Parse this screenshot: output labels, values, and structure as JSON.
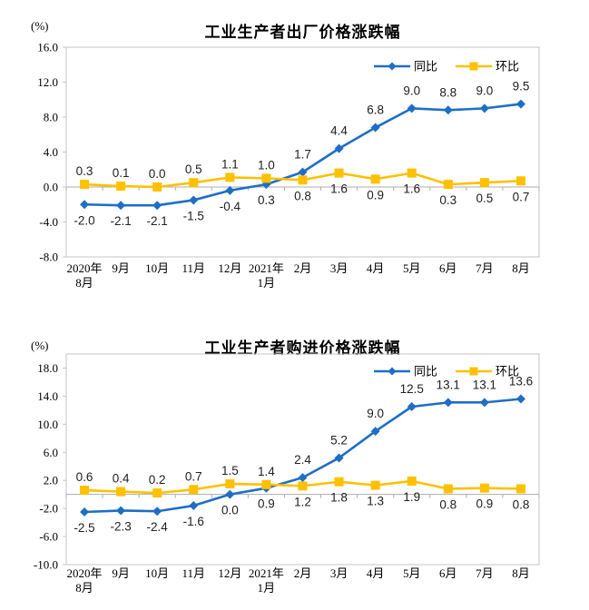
{
  "colors": {
    "yoy_blue": "#1F6EC6",
    "mom_yellow": "#FFC000",
    "plot_border": "#C6C6C6",
    "zero_axis": "#ADADAD",
    "label_text": "#212121",
    "axis_text": "#000000",
    "title_text": "#000000",
    "background": "#FFFFFF"
  },
  "chart_data": [
    {
      "type": "line",
      "title": "工业生产者出厂价格涨跌幅",
      "ylabel": "(%)",
      "xlabel": "",
      "grid": false,
      "legend_position": "inside-top-right",
      "categories": [
        [
          "2020年",
          "8月"
        ],
        [
          "9月"
        ],
        [
          "10月"
        ],
        [
          "11月"
        ],
        [
          "12月"
        ],
        [
          "2021年",
          "1月"
        ],
        [
          "2月"
        ],
        [
          "3月"
        ],
        [
          "4月"
        ],
        [
          "5月"
        ],
        [
          "6月"
        ],
        [
          "7月"
        ],
        [
          "8月"
        ]
      ],
      "series": [
        {
          "name": "同比",
          "key": "yoy",
          "marker": "diamond",
          "color": "#1F6EC6",
          "values": [
            -2.0,
            -2.1,
            -2.1,
            -1.5,
            -0.4,
            0.3,
            1.7,
            4.4,
            6.8,
            9.0,
            8.8,
            9.0,
            9.5
          ]
        },
        {
          "name": "环比",
          "key": "mom",
          "marker": "square",
          "color": "#FFC000",
          "values": [
            0.3,
            0.1,
            0.0,
            0.5,
            1.1,
            1.0,
            0.8,
            1.6,
            0.9,
            1.6,
            0.3,
            0.5,
            0.7
          ]
        }
      ],
      "ylim": [
        -8,
        16
      ],
      "yticks": [
        16,
        12,
        8,
        4,
        0,
        -4,
        -8
      ]
    },
    {
      "type": "line",
      "title": "工业生产者购进价格涨跌幅",
      "ylabel": "(%)",
      "xlabel": "",
      "grid": false,
      "legend_position": "inside-top-right",
      "categories": [
        [
          "2020年",
          "8月"
        ],
        [
          "9月"
        ],
        [
          "10月"
        ],
        [
          "11月"
        ],
        [
          "12月"
        ],
        [
          "2021年",
          "1月"
        ],
        [
          "2月"
        ],
        [
          "3月"
        ],
        [
          "4月"
        ],
        [
          "5月"
        ],
        [
          "6月"
        ],
        [
          "7月"
        ],
        [
          "8月"
        ]
      ],
      "series": [
        {
          "name": "同比",
          "key": "yoy",
          "marker": "diamond",
          "color": "#1F6EC6",
          "values": [
            -2.5,
            -2.3,
            -2.4,
            -1.6,
            0.0,
            0.9,
            2.4,
            5.2,
            9.0,
            12.5,
            13.1,
            13.1,
            13.6
          ]
        },
        {
          "name": "环比",
          "key": "mom",
          "marker": "square",
          "color": "#FFC000",
          "values": [
            0.6,
            0.4,
            0.2,
            0.7,
            1.5,
            1.4,
            1.2,
            1.8,
            1.3,
            1.9,
            0.8,
            0.9,
            0.8
          ]
        }
      ],
      "ylim": [
        -10,
        20
      ],
      "yticks": [
        18,
        14,
        10,
        6,
        2,
        -2,
        -6,
        -10
      ]
    }
  ]
}
